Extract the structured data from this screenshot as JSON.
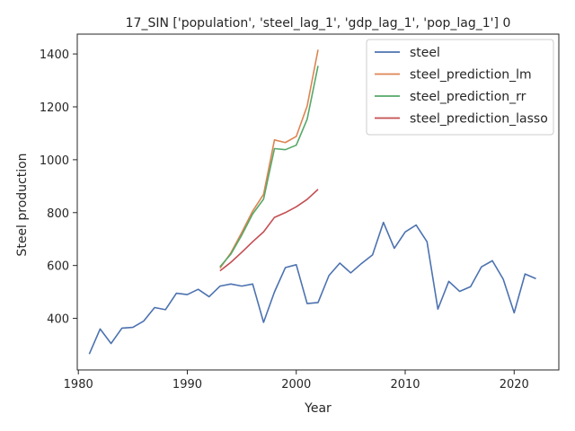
{
  "chart_data": {
    "type": "line",
    "title": "17_SIN ['population', 'steel_lag_1', 'gdp_lag_1', 'pop_lag_1'] 0",
    "xlabel": "Year",
    "ylabel": "Steel production",
    "xlim": [
      1979.9,
      2024.1
    ],
    "ylim": [
      205,
      1475
    ],
    "xticks": [
      1980,
      1990,
      2000,
      2010,
      2020
    ],
    "yticks": [
      400,
      600,
      800,
      1000,
      1200,
      1400
    ],
    "grid": false,
    "legend_position": "top-right",
    "series": [
      {
        "name": "steel",
        "color": "#4c72b0",
        "x": [
          1981,
          1982,
          1983,
          1984,
          1985,
          1986,
          1987,
          1988,
          1989,
          1990,
          1991,
          1992,
          1993,
          1994,
          1995,
          1996,
          1997,
          1998,
          1999,
          2000,
          2001,
          2002,
          2003,
          2004,
          2005,
          2006,
          2007,
          2008,
          2009,
          2010,
          2011,
          2012,
          2013,
          2014,
          2015,
          2016,
          2017,
          2018,
          2019,
          2020,
          2021,
          2022
        ],
        "y": [
          265,
          360,
          305,
          363,
          366,
          390,
          441,
          433,
          495,
          490,
          510,
          482,
          522,
          530,
          522,
          530,
          385,
          500,
          592,
          603,
          456,
          460,
          562,
          609,
          572,
          608,
          640,
          763,
          665,
          727,
          753,
          690,
          435,
          540,
          502,
          520,
          595,
          618,
          548,
          421,
          568,
          550
        ]
      },
      {
        "name": "steel_prediction_lm",
        "color": "#dd8452",
        "x": [
          1993,
          1994,
          1995,
          1996,
          1997,
          1998,
          1999,
          2000,
          2001,
          2002
        ],
        "y": [
          590,
          648,
          725,
          806,
          869,
          1075,
          1065,
          1088,
          1203,
          1416
        ]
      },
      {
        "name": "steel_prediction_rr",
        "color": "#55a868",
        "x": [
          1993,
          1994,
          1995,
          1996,
          1997,
          1998,
          1999,
          2000,
          2001,
          2002
        ],
        "y": [
          595,
          643,
          715,
          795,
          851,
          1042,
          1038,
          1055,
          1153,
          1355
        ]
      },
      {
        "name": "steel_prediction_lasso",
        "color": "#c44e52",
        "x": [
          1993,
          1994,
          1995,
          1996,
          1997,
          1998,
          1999,
          2000,
          2001,
          2002
        ],
        "y": [
          580,
          612,
          650,
          690,
          727,
          782,
          800,
          822,
          850,
          888
        ]
      }
    ]
  }
}
